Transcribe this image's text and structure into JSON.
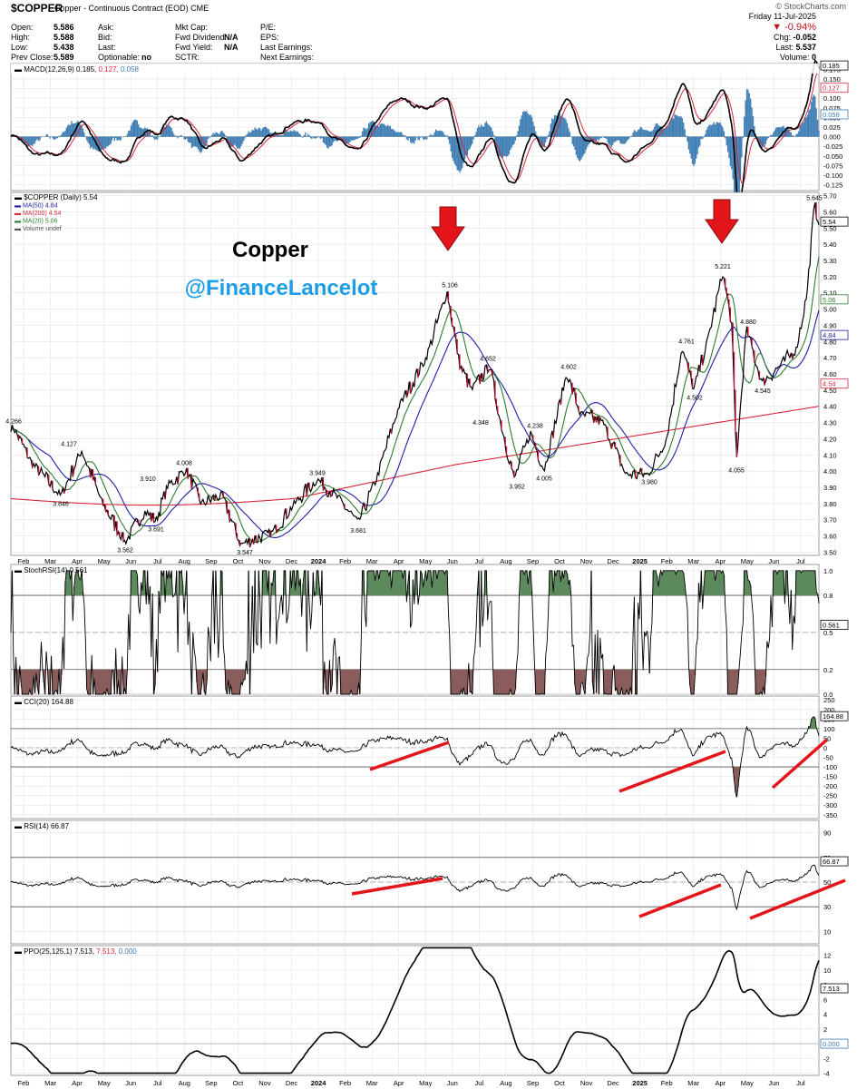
{
  "header": {
    "symbol": "$COPPER",
    "description": "Copper - Continuous Contract (EOD)",
    "exchange": "CME",
    "brand": "© StockCharts.com",
    "date": "Friday  11-Jul-2025",
    "stats": [
      {
        "label": "Open:",
        "value": "5.586"
      },
      {
        "label": "High:",
        "value": "5.588"
      },
      {
        "label": "Low:",
        "value": "5.438"
      },
      {
        "label": "Prev Close:",
        "value": "5.589"
      }
    ],
    "col2": [
      {
        "label": "Ask:",
        "value": ""
      },
      {
        "label": "Bid:",
        "value": ""
      },
      {
        "label": "Last:",
        "value": ""
      },
      {
        "label": "Optionable:",
        "value": "no"
      }
    ],
    "col3": [
      {
        "label": "Mkt Cap:",
        "value": ""
      },
      {
        "label": "Fwd Dividend:",
        "value": "N/A"
      },
      {
        "label": "Fwd Yield:",
        "value": "N/A"
      },
      {
        "label": "SCTR:",
        "value": ""
      }
    ],
    "col4": [
      "P/E:",
      "EPS:",
      "Last Earnings:",
      "Next Earnings:"
    ],
    "change_pct": "▼ -0.94%",
    "right_stats": [
      {
        "label": "Chg:",
        "value": "-0.052"
      },
      {
        "label": "Last:",
        "value": "5.537"
      },
      {
        "label": "Volume:",
        "value": "0"
      }
    ]
  },
  "colors": {
    "price": "#000000",
    "ma50": "#1f1fa8",
    "ma200": "#d9263a",
    "ma20": "#2e7d2e",
    "macd_hist": "#3d7db3",
    "overbought": "#5c8a5c",
    "oversold": "#8a5c5c",
    "annotation": "#e3151b"
  },
  "panels": {
    "macd": {
      "legend": "MACD(12,26,9)",
      "v1": "0.185",
      "v2": "0.127",
      "v3": "0.058",
      "ticks": [
        "0.175",
        "0.150",
        "0.125",
        "0.100",
        "0.075",
        "0.050",
        "0.025",
        "0.000",
        "-0.025",
        "-0.050",
        "-0.075",
        "-0.100",
        "-0.125"
      ],
      "tags": [
        "0.185",
        "0.127",
        "0.058"
      ]
    },
    "price": {
      "legend": "$COPPER (Daily) 5.54",
      "ma50": "MA(50) 4.84",
      "ma200": "MA(200) 4.54",
      "ma20": "MA(20) 5.06",
      "vol": "Volume undef",
      "ticks": [
        "5.70",
        "5.60",
        "5.50",
        "5.40",
        "5.30",
        "5.20",
        "5.10",
        "5.00",
        "4.90",
        "4.80",
        "4.70",
        "4.60",
        "4.50",
        "4.40",
        "4.30",
        "4.20",
        "4.10",
        "4.00",
        "3.90",
        "3.80",
        "3.70",
        "3.60",
        "3.50"
      ],
      "tags": [
        "5.645",
        "5.54",
        "5.06",
        "4.84",
        "4.54"
      ],
      "title": "Copper",
      "handle": "@FinanceLancelot"
    },
    "stochrsi": {
      "legend": "StochRSI(14) 0.561",
      "ticks": [
        "1.0",
        "0.8",
        "0.5",
        "0.2",
        "0.0"
      ],
      "tag": "0.561"
    },
    "cci": {
      "legend": "CCI(20) 164.88",
      "ticks": [
        "250",
        "200",
        "150",
        "100",
        "50",
        "0",
        "-50",
        "-100",
        "-150",
        "-200",
        "-250",
        "-300",
        "-350"
      ],
      "tag": "164.88"
    },
    "rsi": {
      "legend": "RSI(14) 66.87",
      "ticks": [
        "90",
        "70",
        "50",
        "30",
        "10"
      ],
      "tag": "66.87"
    },
    "ppo": {
      "legend": "PPO(25,125,1)",
      "v1": "7.513",
      "v2": "7.513",
      "v3": "0.000",
      "ticks": [
        "12",
        "10",
        "8",
        "6",
        "4",
        "2",
        "0",
        "-2",
        "-4"
      ],
      "tags": [
        "7.513",
        "0.000"
      ]
    }
  },
  "x_axis_labels": [
    "Feb",
    "Mar",
    "Apr",
    "May",
    "Jun",
    "Jul",
    "Aug",
    "Sep",
    "Oct",
    "Nov",
    "Dec",
    "2024",
    "Feb",
    "Mar",
    "Apr",
    "May",
    "Jun",
    "Jul",
    "Aug",
    "Sep",
    "Oct",
    "Nov",
    "Dec",
    "2025",
    "Feb",
    "Mar",
    "Apr",
    "May",
    "Jun",
    "Jul"
  ],
  "chart_data": {
    "type": "line",
    "title": "$COPPER",
    "x": [
      "2023-02",
      "2023-03",
      "2023-04",
      "2023-05",
      "2023-06",
      "2023-07",
      "2023-08",
      "2023-09",
      "2023-10",
      "2023-11",
      "2023-12",
      "2024-01",
      "2024-02",
      "2024-03",
      "2024-04",
      "2024-05",
      "2024-06",
      "2024-07",
      "2024-08",
      "2024-09",
      "2024-10",
      "2024-11",
      "2024-12",
      "2025-01",
      "2025-02",
      "2025-03",
      "2025-04",
      "2025-05",
      "2025-06",
      "2025-07"
    ],
    "series": [
      {
        "name": "$COPPER (Daily)",
        "values": [
          4.1,
          3.95,
          4.05,
          3.75,
          3.8,
          3.85,
          3.8,
          3.75,
          3.6,
          3.75,
          3.85,
          3.8,
          3.75,
          3.95,
          4.3,
          4.9,
          4.5,
          4.45,
          4.05,
          4.15,
          4.5,
          4.2,
          4.05,
          4.25,
          4.6,
          5.1,
          4.3,
          4.65,
          4.85,
          5.54
        ]
      },
      {
        "name": "MA(50)",
        "values": [
          4.15,
          4.05,
          4.0,
          3.95,
          3.85,
          3.85,
          3.82,
          3.8,
          3.72,
          3.7,
          3.8,
          3.82,
          3.8,
          3.85,
          4.05,
          4.4,
          4.55,
          4.55,
          4.35,
          4.15,
          4.25,
          4.3,
          4.15,
          4.15,
          4.35,
          4.6,
          4.65,
          4.6,
          4.7,
          4.84
        ]
      },
      {
        "name": "MA(200)",
        "values": [
          3.83,
          3.82,
          3.84,
          3.86,
          3.88,
          3.9,
          3.9,
          3.89,
          3.87,
          3.84,
          3.83,
          3.82,
          3.81,
          3.83,
          3.88,
          3.97,
          4.05,
          4.12,
          4.17,
          4.2,
          4.22,
          4.25,
          4.27,
          4.29,
          4.32,
          4.35,
          4.37,
          4.4,
          4.45,
          4.54
        ]
      },
      {
        "name": "MA(20)",
        "values": [
          4.1,
          3.98,
          4.02,
          3.82,
          3.8,
          3.83,
          3.8,
          3.76,
          3.65,
          3.72,
          3.82,
          3.82,
          3.77,
          3.88,
          4.2,
          4.7,
          4.55,
          4.5,
          4.1,
          4.1,
          4.45,
          4.25,
          4.05,
          4.18,
          4.52,
          4.95,
          4.4,
          4.6,
          4.8,
          5.06
        ]
      }
    ],
    "annotations": [
      "4.266",
      "4.127",
      "3.846",
      "3.910",
      "4.008",
      "3.562",
      "3.691",
      "3.547",
      "3.949",
      "3.681",
      "5.106",
      "4.652",
      "4.348",
      "3.952",
      "4.005",
      "4.238",
      "4.602",
      "3.980",
      "4.761",
      "4.502",
      "5.221",
      "4.880",
      "4.545",
      "4.055",
      "5.645"
    ],
    "ylim": [
      3.5,
      5.7
    ],
    "grid": true,
    "legend": "top-left"
  }
}
